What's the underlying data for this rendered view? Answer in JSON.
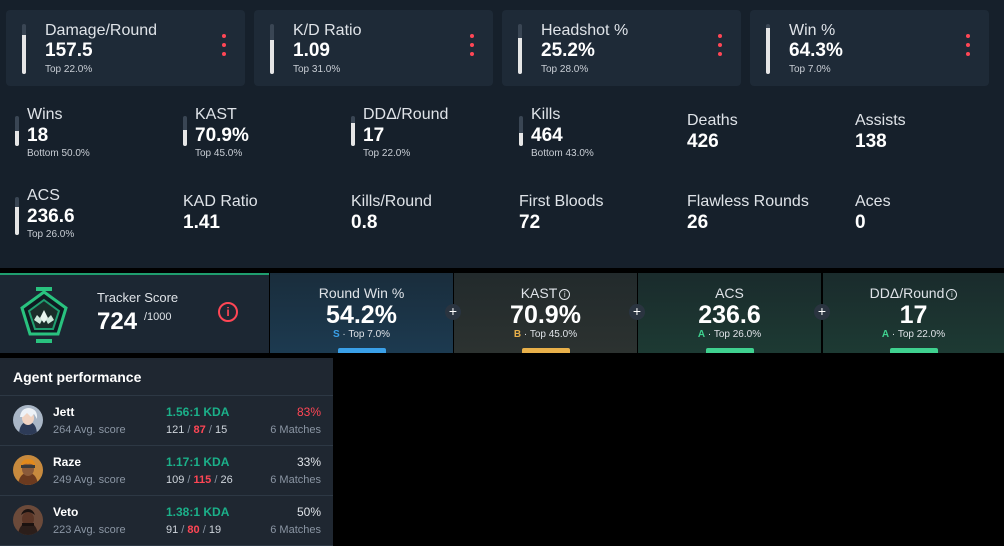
{
  "top_cards": [
    {
      "label": "Damage/Round",
      "value": "157.5",
      "sub": "Top 22.0%",
      "bar_fill": 0.78
    },
    {
      "label": "K/D Ratio",
      "value": "1.09",
      "sub": "Top 31.0%",
      "bar_fill": 0.69
    },
    {
      "label": "Headshot %",
      "value": "25.2%",
      "sub": "Top 28.0%",
      "bar_fill": 0.72
    },
    {
      "label": "Win %",
      "value": "64.3%",
      "sub": "Top 7.0%",
      "bar_fill": 0.93
    }
  ],
  "grid_stats": [
    {
      "label": "Wins",
      "value": "18",
      "sub": "Bottom 50.0%",
      "bar_fill": 0.5
    },
    {
      "label": "KAST",
      "value": "70.9%",
      "sub": "Top 45.0%",
      "bar_fill": 0.55
    },
    {
      "label": "DDΔ/Round",
      "value": "17",
      "sub": "Top 22.0%",
      "bar_fill": 0.78
    },
    {
      "label": "Kills",
      "value": "464",
      "sub": "Bottom 43.0%",
      "bar_fill": 0.43
    },
    {
      "label": "Deaths",
      "value": "426"
    },
    {
      "label": "Assists",
      "value": "138"
    },
    {
      "label": "ACS",
      "value": "236.6",
      "sub": "Top 26.0%",
      "bar_fill": 0.74
    },
    {
      "label": "KAD Ratio",
      "value": "1.41"
    },
    {
      "label": "Kills/Round",
      "value": "0.8"
    },
    {
      "label": "First Bloods",
      "value": "72"
    },
    {
      "label": "Flawless Rounds",
      "value": "26"
    },
    {
      "label": "Aces",
      "value": "0"
    }
  ],
  "tracker": {
    "label": "Tracker Score",
    "value": "724",
    "max": "/1000",
    "cells": [
      {
        "label": "Round Win %",
        "value": "54.2%",
        "grade": "S",
        "sub": " · Top 7.0%",
        "grade_color": "#3aa0e8",
        "bar_color": "#3aa0e8"
      },
      {
        "label": "KAST",
        "value": "70.9%",
        "grade": "B",
        "sub": " · Top 45.0%",
        "grade_color": "#e8b04a",
        "bar_color": "#e8b04a"
      },
      {
        "label": "ACS",
        "value": "236.6",
        "grade": "A",
        "sub": " · Top 26.0%",
        "grade_color": "#3fd18f",
        "bar_color": "#3fd18f"
      },
      {
        "label": "DDΔ/Round",
        "value": "17",
        "grade": "A",
        "sub": " · Top 22.0%",
        "grade_color": "#3fd18f",
        "bar_color": "#3fd18f"
      }
    ]
  },
  "agents": {
    "title": "Agent performance",
    "rows": [
      {
        "name": "Jett",
        "score": "264 Avg. score",
        "kda": "1.56:1 KDA",
        "k": "121",
        "d": "87",
        "a": "15",
        "winrate": "83%",
        "matches": "6 Matches",
        "avatar_icon": "jett-avatar"
      },
      {
        "name": "Raze",
        "score": "249 Avg. score",
        "kda": "1.17:1 KDA",
        "k": "109",
        "d": "115",
        "a": "26",
        "winrate": "33%",
        "matches": "6 Matches",
        "avatar_icon": "raze-avatar"
      },
      {
        "name": "Veto",
        "score": "223 Avg. score",
        "kda": "1.38:1 KDA",
        "k": "91",
        "d": "80",
        "a": "19",
        "winrate": "50%",
        "matches": "6 Matches",
        "avatar_icon": "veto-avatar"
      }
    ]
  }
}
